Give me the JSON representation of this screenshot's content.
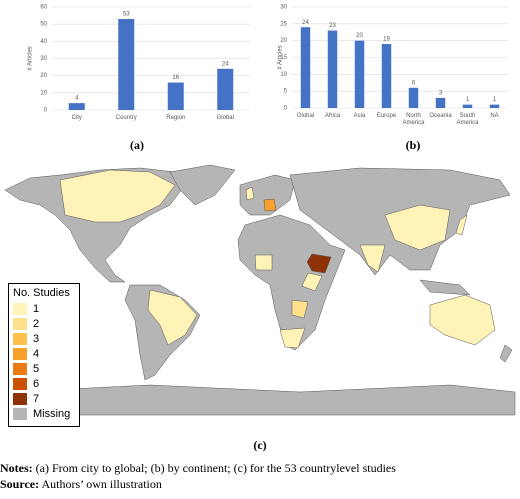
{
  "chart_data": [
    {
      "type": "bar",
      "ylabel": "# Articles",
      "categories": [
        "City",
        "Country",
        "Region",
        "Global"
      ],
      "values": [
        4,
        53,
        16,
        24
      ],
      "color": "#4472c4",
      "ylim": [
        0,
        60
      ],
      "yticks": [
        0,
        10,
        20,
        30,
        40,
        50,
        60
      ],
      "grid": true,
      "caption": "(a)"
    },
    {
      "type": "bar",
      "ylabel": "# Articles",
      "categories": [
        "Global",
        "Africa",
        "Asia",
        "Europe",
        "North America",
        "Oceania",
        "South America",
        "NA"
      ],
      "values": [
        24,
        23,
        20,
        19,
        6,
        3,
        1,
        1
      ],
      "color": "#4472c4",
      "ylim": [
        0,
        30
      ],
      "yticks": [
        0,
        5,
        10,
        15,
        20,
        25,
        30
      ],
      "grid": true,
      "caption": "(b)"
    }
  ],
  "map": {
    "caption": "(c)",
    "legend_title": "No. Studies",
    "legend": [
      {
        "label": "1",
        "color": "#fff3b8"
      },
      {
        "label": "2",
        "color": "#fde08c"
      },
      {
        "label": "3",
        "color": "#fdc04a"
      },
      {
        "label": "4",
        "color": "#f9a02c"
      },
      {
        "label": "5",
        "color": "#ec7a14"
      },
      {
        "label": "6",
        "color": "#cc5208"
      },
      {
        "label": "7",
        "color": "#8c3206"
      },
      {
        "label": "Missing",
        "color": "#b5b5b5"
      }
    ]
  },
  "notes": {
    "label": "Notes:",
    "text": "(a) From city to global; (b) by continent; (c) for the 53 countrylevel studies"
  },
  "source": {
    "label": "Source:",
    "text": "Authors’ own illustration"
  }
}
